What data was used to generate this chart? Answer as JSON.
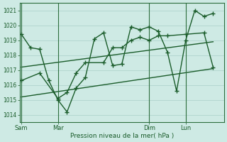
{
  "bg_color": "#ceeae4",
  "grid_color": "#aacfc8",
  "line_color": "#1a5c2a",
  "ylabel_ticks": [
    1014,
    1015,
    1016,
    1017,
    1018,
    1019,
    1020,
    1021
  ],
  "xlabel": "Pression niveau de la mer( hPa )",
  "day_labels": [
    "Sam",
    "Mar",
    "Dim",
    "Lun"
  ],
  "day_positions": [
    0,
    2,
    7,
    9
  ],
  "total_x": 11,
  "ylim": [
    1013.5,
    1021.5
  ],
  "xlim": [
    -0.1,
    11.1
  ],
  "s1x": [
    0,
    0.5,
    1.0,
    1.5,
    2.0,
    2.5,
    3.0,
    3.5,
    4.0,
    4.5,
    5.0,
    5.5,
    6.0,
    6.5,
    7.0,
    7.5,
    8.0,
    8.5,
    9.0,
    9.5,
    10.0,
    10.5
  ],
  "s1y": [
    1019.4,
    1018.5,
    1018.4,
    1016.3,
    1015.0,
    1014.2,
    1015.8,
    1016.5,
    1019.1,
    1019.5,
    1017.3,
    1017.4,
    1019.9,
    1019.7,
    1019.9,
    1019.6,
    1018.2,
    1015.6,
    1019.0,
    1021.0,
    1020.6,
    1020.8
  ],
  "s2x": [
    0,
    1.0,
    2.0,
    2.5,
    3.0,
    3.5,
    4.5,
    5.0,
    5.5,
    6.0,
    6.5,
    7.0,
    7.5,
    8.0,
    9.0,
    10.0,
    10.5
  ],
  "s2y": [
    1016.3,
    1016.8,
    1015.1,
    1015.5,
    1016.8,
    1017.5,
    1017.5,
    1018.5,
    1018.5,
    1019.0,
    1019.2,
    1019.0,
    1019.3,
    1019.3,
    1019.4,
    1019.5,
    1017.2
  ],
  "t1x": [
    0,
    10.5
  ],
  "t1y": [
    1017.2,
    1018.9
  ],
  "t2x": [
    0,
    10.5
  ],
  "t2y": [
    1015.2,
    1017.1
  ]
}
